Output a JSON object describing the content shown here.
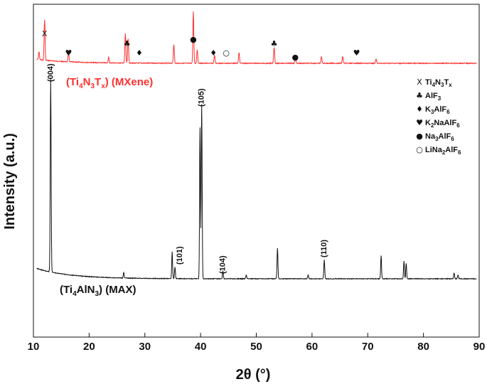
{
  "chart_data": {
    "type": "line",
    "xlabel": "2θ (°)",
    "ylabel": "Intensity (a.u.)",
    "xlim": [
      10,
      90
    ],
    "xticks": [
      "10",
      "20",
      "30",
      "40",
      "50",
      "60",
      "70",
      "80",
      "90"
    ],
    "grid": false,
    "legend_position": "right",
    "colors": {
      "mxene": "#ff3030",
      "max": "#111111"
    },
    "series": [
      {
        "name": "(Ti4N3Tx) (MXene)",
        "label_main": "(Ti",
        "label_parts": [
          "4",
          "N",
          "3",
          "T",
          "x",
          ") (MXene)"
        ],
        "peaks": [
          {
            "x": 11.0,
            "h": 0.06
          },
          {
            "x": 12.0,
            "h": 0.3
          },
          {
            "x": 16.3,
            "h": 0.08
          },
          {
            "x": 23.5,
            "h": 0.04
          },
          {
            "x": 26.5,
            "h": 0.22
          },
          {
            "x": 27.0,
            "h": 0.18
          },
          {
            "x": 35.2,
            "h": 0.14
          },
          {
            "x": 38.7,
            "h": 0.38
          },
          {
            "x": 39.4,
            "h": 0.1
          },
          {
            "x": 42.5,
            "h": 0.06
          },
          {
            "x": 46.9,
            "h": 0.08
          },
          {
            "x": 53.2,
            "h": 0.12
          },
          {
            "x": 57.0,
            "h": 0.06
          },
          {
            "x": 61.7,
            "h": 0.05
          },
          {
            "x": 65.5,
            "h": 0.05
          },
          {
            "x": 71.5,
            "h": 0.03
          }
        ],
        "markers": [
          {
            "x": 12.0,
            "symbol": "X"
          },
          {
            "x": 16.3,
            "symbol": "♥"
          },
          {
            "x": 26.8,
            "symbol": "♣"
          },
          {
            "x": 29.0,
            "symbol": "♦"
          },
          {
            "x": 38.7,
            "symbol": "●"
          },
          {
            "x": 42.3,
            "symbol": "♦"
          },
          {
            "x": 44.6,
            "symbol": "○"
          },
          {
            "x": 53.2,
            "symbol": "♣"
          },
          {
            "x": 57.0,
            "symbol": "●"
          },
          {
            "x": 68.0,
            "symbol": "♥"
          }
        ]
      },
      {
        "name": "(Ti4AlN3) (MAX)",
        "label_parts": [
          "(Ti",
          "4",
          "AlN",
          "3",
          ") (MAX)"
        ],
        "peaks": [
          {
            "x": 13.1,
            "h": 1.0
          },
          {
            "x": 26.2,
            "h": 0.03
          },
          {
            "x": 34.9,
            "h": 0.14
          },
          {
            "x": 35.4,
            "h": 0.06
          },
          {
            "x": 39.9,
            "h": 0.78
          },
          {
            "x": 40.2,
            "h": 0.9
          },
          {
            "x": 44.0,
            "h": 0.04
          },
          {
            "x": 48.2,
            "h": 0.02
          },
          {
            "x": 53.8,
            "h": 0.16
          },
          {
            "x": 59.3,
            "h": 0.02
          },
          {
            "x": 62.2,
            "h": 0.1
          },
          {
            "x": 72.4,
            "h": 0.12
          },
          {
            "x": 76.5,
            "h": 0.09
          },
          {
            "x": 76.9,
            "h": 0.08
          },
          {
            "x": 85.5,
            "h": 0.03
          },
          {
            "x": 86.2,
            "h": 0.02
          }
        ],
        "peak_labels": [
          {
            "x": 13.1,
            "text": "(004)"
          },
          {
            "x": 40.2,
            "text": "(105)"
          },
          {
            "x": 36.3,
            "text": "(101)"
          },
          {
            "x": 44.0,
            "text": "(104)"
          },
          {
            "x": 62.2,
            "text": "(110)"
          }
        ]
      }
    ],
    "legend": [
      {
        "symbol": "X",
        "parts": [
          "Ti",
          "4",
          "N",
          "3",
          "T",
          "x"
        ]
      },
      {
        "symbol": "♣",
        "parts": [
          "AlF",
          "3"
        ]
      },
      {
        "symbol": "♦",
        "parts": [
          "K",
          "3",
          "AlF",
          "6"
        ]
      },
      {
        "symbol": "♥",
        "parts": [
          "K",
          "2",
          "NaAlF",
          "6"
        ]
      },
      {
        "symbol": "●",
        "parts": [
          "Na",
          "3",
          "AlF",
          "6"
        ]
      },
      {
        "symbol": "○",
        "parts": [
          "LiNa",
          "2",
          "AlF",
          "6"
        ]
      }
    ]
  }
}
